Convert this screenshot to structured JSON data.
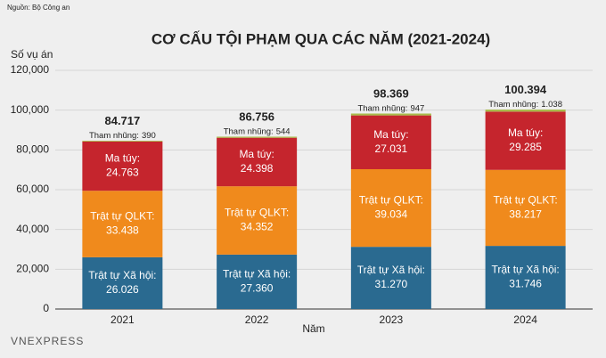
{
  "chart_data": {
    "type": "stacked_bar",
    "source": "Nguồn: Bộ Công an",
    "title": "CƠ CẤU TỘI PHẠM QUA CÁC NĂM (2021-2024)",
    "y_label": "Số vụ án",
    "x_label": "Năm",
    "logo": "VNEXPRESS",
    "categories": [
      "2021",
      "2022",
      "2023",
      "2024"
    ],
    "series": [
      {
        "name": "Trật tự Xã hội:",
        "color": "#2a6a90",
        "values": [
          26026,
          27360,
          31270,
          31746
        ],
        "value_labels": [
          "26.026",
          "27.360",
          "31.270",
          "31.746"
        ]
      },
      {
        "name": "Trật tự QLKT:",
        "color": "#f08a1c",
        "values": [
          33438,
          34352,
          39034,
          38217
        ],
        "value_labels": [
          "33.438",
          "34.352",
          "39.034",
          "38.217"
        ]
      },
      {
        "name": "Ma túy:",
        "color": "#c5252d",
        "values": [
          24763,
          24398,
          27031,
          29285
        ],
        "value_labels": [
          "24.763",
          "24.398",
          "27.031",
          "29.285"
        ]
      },
      {
        "name": "Tham nhũng:",
        "color": "#a9bb4a",
        "values": [
          390,
          544,
          947,
          1038
        ],
        "value_labels": [
          "390",
          "544",
          "947",
          "1.038"
        ]
      }
    ],
    "totals": {
      "values": [
        84717,
        86756,
        98369,
        100394
      ],
      "value_labels": [
        "84.717",
        "86.756",
        "98.369",
        "100.394"
      ]
    },
    "ylim": [
      0,
      120000
    ],
    "yticks": [
      0,
      {
        "value": 20000,
        "label": "20,000"
      },
      {
        "value": 40000,
        "label": "40,000"
      },
      {
        "value": 60000,
        "label": "60,000"
      },
      {
        "value": 80000,
        "label": "80,000"
      },
      {
        "value": 100000,
        "label": "100,000"
      },
      {
        "value": 120000,
        "label": "120,000"
      }
    ],
    "grid": true
  }
}
